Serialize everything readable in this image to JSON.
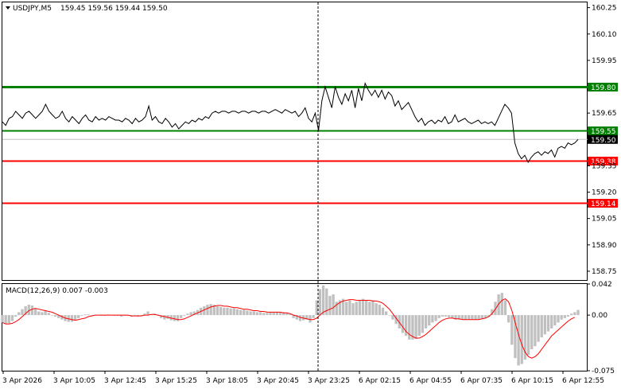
{
  "header": {
    "symbol": "USDJPY,M5",
    "ohlc": "159.45 159.56 159.44 159.50"
  },
  "macd": {
    "label": "MACD(12,26,9) 0.007 -0.003",
    "ylabels": [
      "0.042",
      "0.00",
      "-0.075"
    ]
  },
  "colors": {
    "price_line": "#000000",
    "support": "#ff0000",
    "resistance": "#008000",
    "histogram": "#c0c0c0",
    "signal": "#ff0000",
    "current_price_tag": "#000000"
  },
  "chart_data": [
    {
      "type": "line",
      "name": "price",
      "symbol": "USDJPY",
      "timeframe": "M5",
      "ylim": [
        158.7,
        160.28
      ],
      "yticks": [
        {
          "value": 160.25,
          "label": "160.25"
        },
        {
          "value": 160.1,
          "label": "160.10"
        },
        {
          "value": 159.95,
          "label": "159.95"
        },
        {
          "value": 159.65,
          "label": "159.65"
        },
        {
          "value": 159.35,
          "label": "159.35"
        },
        {
          "value": 159.2,
          "label": "159.20"
        },
        {
          "value": 159.05,
          "label": "159.05"
        },
        {
          "value": 158.9,
          "label": "158.90"
        },
        {
          "value": 158.75,
          "label": "158.75"
        }
      ],
      "levels": [
        {
          "value": 159.8,
          "label": "159.80",
          "color": "#008000",
          "kind": "resistance"
        },
        {
          "value": 159.55,
          "label": "159.55",
          "color": "#008000",
          "kind": "resistance"
        },
        {
          "value": 159.38,
          "label": "159.38",
          "color": "#ff0000",
          "kind": "support"
        },
        {
          "value": 159.14,
          "label": "159.14",
          "color": "#ff0000",
          "kind": "support"
        }
      ],
      "current_price": {
        "value": 159.5,
        "label": "159.50"
      },
      "xticks": [
        "3 Apr 2026",
        "3 Apr 10:05",
        "3 Apr 12:45",
        "3 Apr 15:25",
        "3 Apr 18:05",
        "3 Apr 20:45",
        "3 Apr 23:25",
        "6 Apr 02:15",
        "6 Apr 04:55",
        "6 Apr 07:35",
        "6 Apr 10:15",
        "6 Apr 12:55"
      ],
      "grid": false,
      "separator_after_tick": "3 Apr 23:25",
      "values": [
        159.6,
        159.58,
        159.62,
        159.63,
        159.66,
        159.64,
        159.62,
        159.65,
        159.66,
        159.64,
        159.62,
        159.64,
        159.66,
        159.7,
        159.66,
        159.64,
        159.62,
        159.63,
        159.66,
        159.62,
        159.6,
        159.63,
        159.61,
        159.59,
        159.62,
        159.64,
        159.61,
        159.6,
        159.63,
        159.61,
        159.62,
        159.61,
        159.63,
        159.62,
        159.61,
        159.61,
        159.6,
        159.62,
        159.61,
        159.59,
        159.62,
        159.6,
        159.61,
        159.63,
        159.69,
        159.61,
        159.63,
        159.6,
        159.59,
        159.62,
        159.6,
        159.57,
        159.59,
        159.56,
        159.58,
        159.6,
        159.59,
        159.61,
        159.6,
        159.62,
        159.61,
        159.63,
        159.62,
        159.65,
        159.66,
        159.65,
        159.66,
        159.66,
        159.65,
        159.66,
        159.66,
        159.65,
        159.66,
        159.66,
        159.65,
        159.66,
        159.66,
        159.65,
        159.66,
        159.66,
        159.65,
        159.66,
        159.67,
        159.66,
        159.65,
        159.67,
        159.66,
        159.65,
        159.66,
        159.63,
        159.65,
        159.68,
        159.62,
        159.6,
        159.65,
        159.55,
        159.72,
        159.8,
        159.74,
        159.68,
        159.8,
        159.74,
        159.7,
        159.76,
        159.72,
        159.78,
        159.68,
        159.79,
        159.72,
        159.82,
        159.78,
        159.75,
        159.78,
        159.74,
        159.78,
        159.73,
        159.77,
        159.75,
        159.69,
        159.72,
        159.67,
        159.69,
        159.71,
        159.67,
        159.63,
        159.6,
        159.62,
        159.58,
        159.6,
        159.61,
        159.59,
        159.61,
        159.6,
        159.63,
        159.59,
        159.6,
        159.64,
        159.6,
        159.61,
        159.62,
        159.6,
        159.59,
        159.6,
        159.61,
        159.59,
        159.6,
        159.59,
        159.6,
        159.58,
        159.62,
        159.66,
        159.7,
        159.68,
        159.65,
        159.48,
        159.42,
        159.39,
        159.41,
        159.37,
        159.4,
        159.42,
        159.43,
        159.41,
        159.43,
        159.42,
        159.44,
        159.4,
        159.45,
        159.46,
        159.45,
        159.48,
        159.47,
        159.48,
        159.5
      ]
    },
    {
      "type": "bar",
      "name": "MACD(12,26,9)",
      "ylim": [
        -0.075,
        0.042
      ],
      "yticks": [
        0.042,
        0.0,
        -0.075
      ],
      "current": {
        "macd": 0.007,
        "signal": -0.003
      },
      "histogram": [
        -0.01,
        -0.012,
        -0.011,
        -0.008,
        -0.002,
        0.004,
        0.008,
        0.012,
        0.014,
        0.013,
        0.009,
        0.005,
        0.004,
        0.006,
        0.003,
        0.0,
        -0.002,
        -0.004,
        -0.006,
        -0.008,
        -0.009,
        -0.009,
        -0.007,
        -0.004,
        -0.001,
        0.001,
        0.001,
        0.0,
        0.0,
        0.0,
        -0.001,
        -0.001,
        0.001,
        0.0,
        -0.001,
        -0.001,
        -0.002,
        -0.001,
        -0.001,
        -0.002,
        -0.001,
        -0.002,
        -0.001,
        0.002,
        0.005,
        0.001,
        0.002,
        0.0,
        -0.004,
        -0.006,
        -0.005,
        -0.007,
        -0.008,
        -0.008,
        -0.004,
        -0.001,
        0.002,
        0.004,
        0.005,
        0.007,
        0.01,
        0.012,
        0.014,
        0.015,
        0.014,
        0.012,
        0.011,
        0.01,
        0.01,
        0.009,
        0.009,
        0.008,
        0.007,
        0.007,
        0.006,
        0.005,
        0.005,
        0.004,
        0.004,
        0.003,
        0.003,
        0.004,
        0.004,
        0.004,
        0.004,
        0.004,
        0.003,
        0.002,
        -0.004,
        -0.006,
        -0.008,
        -0.007,
        -0.006,
        -0.01,
        -0.004,
        0.02,
        0.035,
        0.04,
        0.036,
        0.026,
        0.028,
        0.018,
        0.02,
        0.022,
        0.018,
        0.02,
        0.016,
        0.018,
        0.02,
        0.022,
        0.02,
        0.018,
        0.02,
        0.016,
        0.014,
        0.01,
        0.005,
        0.0,
        -0.006,
        -0.012,
        -0.018,
        -0.024,
        -0.028,
        -0.033,
        -0.033,
        -0.032,
        -0.028,
        -0.024,
        -0.018,
        -0.014,
        -0.01,
        -0.008,
        -0.004,
        -0.002,
        -0.002,
        -0.003,
        -0.004,
        -0.006,
        -0.006,
        -0.006,
        -0.006,
        -0.006,
        -0.006,
        -0.006,
        -0.006,
        -0.005,
        -0.004,
        -0.002,
        0.008,
        0.018,
        0.028,
        0.03,
        0.02,
        -0.01,
        -0.04,
        -0.058,
        -0.068,
        -0.066,
        -0.06,
        -0.054,
        -0.046,
        -0.042,
        -0.036,
        -0.03,
        -0.026,
        -0.022,
        -0.018,
        -0.014,
        -0.01,
        -0.006,
        -0.004,
        -0.002,
        0.002,
        0.004,
        0.007
      ],
      "signal": [
        -0.01,
        -0.012,
        -0.012,
        -0.011,
        -0.009,
        -0.006,
        -0.002,
        0.002,
        0.006,
        0.008,
        0.009,
        0.008,
        0.007,
        0.006,
        0.005,
        0.004,
        0.002,
        0.0,
        -0.002,
        -0.004,
        -0.005,
        -0.006,
        -0.007,
        -0.006,
        -0.005,
        -0.004,
        -0.002,
        -0.001,
        0.0,
        0.0,
        0.0,
        0.0,
        0.0,
        0.0,
        0.0,
        0.0,
        0.0,
        0.0,
        0.0,
        -0.001,
        -0.001,
        -0.001,
        -0.001,
        0.0,
        0.0,
        0.001,
        0.001,
        0.0,
        -0.001,
        -0.002,
        -0.003,
        -0.004,
        -0.005,
        -0.006,
        -0.006,
        -0.005,
        -0.003,
        -0.001,
        0.001,
        0.003,
        0.005,
        0.007,
        0.009,
        0.011,
        0.012,
        0.013,
        0.013,
        0.012,
        0.012,
        0.011,
        0.01,
        0.01,
        0.009,
        0.008,
        0.008,
        0.007,
        0.006,
        0.006,
        0.005,
        0.005,
        0.004,
        0.004,
        0.004,
        0.004,
        0.004,
        0.003,
        0.003,
        0.002,
        0.0,
        -0.001,
        -0.003,
        -0.004,
        -0.005,
        -0.006,
        -0.006,
        -0.004,
        0.0,
        0.004,
        0.006,
        0.008,
        0.01,
        0.014,
        0.017,
        0.019,
        0.02,
        0.021,
        0.021,
        0.02,
        0.02,
        0.02,
        0.02,
        0.02,
        0.019,
        0.019,
        0.018,
        0.016,
        0.012,
        0.008,
        0.002,
        -0.004,
        -0.01,
        -0.016,
        -0.022,
        -0.026,
        -0.029,
        -0.031,
        -0.031,
        -0.029,
        -0.026,
        -0.022,
        -0.018,
        -0.014,
        -0.01,
        -0.007,
        -0.005,
        -0.004,
        -0.004,
        -0.005,
        -0.005,
        -0.006,
        -0.006,
        -0.006,
        -0.006,
        -0.006,
        -0.006,
        -0.005,
        -0.004,
        -0.002,
        0.002,
        0.008,
        0.015,
        0.02,
        0.022,
        0.018,
        0.006,
        -0.01,
        -0.026,
        -0.04,
        -0.05,
        -0.056,
        -0.058,
        -0.056,
        -0.052,
        -0.046,
        -0.04,
        -0.034,
        -0.028,
        -0.024,
        -0.02,
        -0.016,
        -0.012,
        -0.008,
        -0.005,
        -0.003
      ]
    }
  ]
}
